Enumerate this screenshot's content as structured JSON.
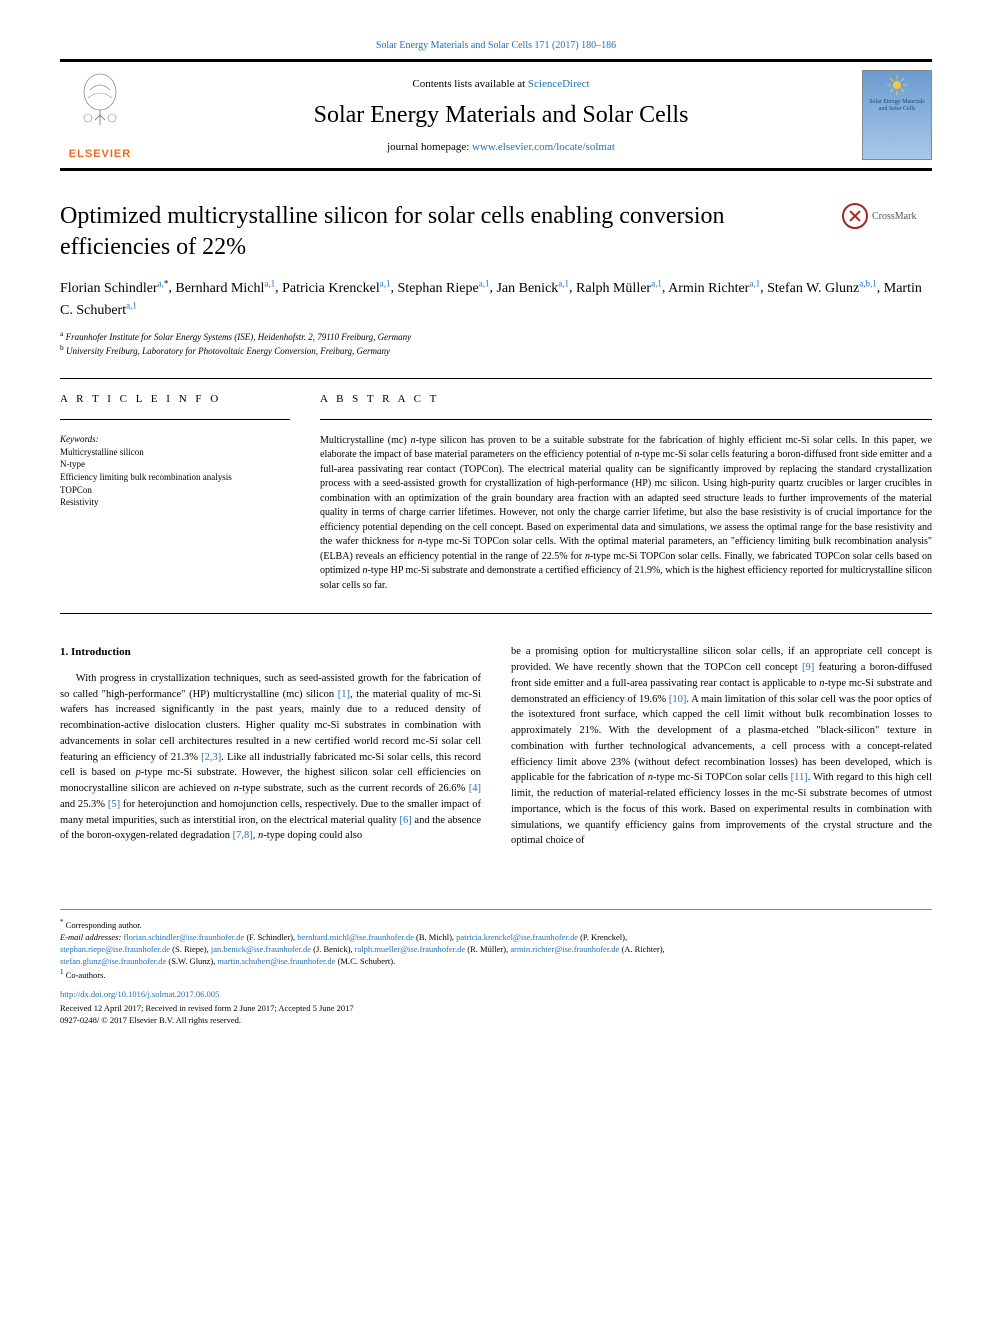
{
  "topLink": "Solar Energy Materials and Solar Cells 171 (2017) 180–186",
  "header": {
    "contentsPrefix": "Contents lists available at ",
    "contentsLink": "ScienceDirect",
    "journalTitle": "Solar Energy Materials and Solar Cells",
    "homepagePrefix": "journal homepage: ",
    "homepageLink": "www.elsevier.com/locate/solmat",
    "elsevierLabel": "ELSEVIER",
    "coverText": "Solar Energy Materials and Solar Cells"
  },
  "crossmarkLabel": "CrossMark",
  "title": "Optimized multicrystalline silicon for solar cells enabling conversion efficiencies of 22%",
  "authors": [
    {
      "name": "Florian Schindler",
      "aff": "a,",
      "mark": "*"
    },
    {
      "name": "Bernhard Michl",
      "aff": "a,",
      "mark": "1"
    },
    {
      "name": "Patricia Krenckel",
      "aff": "a,",
      "mark": "1"
    },
    {
      "name": "Stephan Riepe",
      "aff": "a,",
      "mark": "1"
    },
    {
      "name": "Jan Benick",
      "aff": "a,",
      "mark": "1"
    },
    {
      "name": "Ralph Müller",
      "aff": "a,",
      "mark": "1"
    },
    {
      "name": "Armin Richter",
      "aff": "a,",
      "mark": "1"
    },
    {
      "name": "Stefan W. Glunz",
      "aff": "a,b,",
      "mark": "1"
    },
    {
      "name": "Martin C. Schubert",
      "aff": "a,",
      "mark": "1"
    }
  ],
  "affiliations": [
    {
      "sup": "a",
      "text": " Fraunhofer Institute for Solar Energy Systems (ISE), Heidenhofstr. 2, 79110 Freiburg, Germany"
    },
    {
      "sup": "b",
      "text": " University Freiburg, Laboratory for Photovoltaic Energy Conversion, Freiburg, Germany"
    }
  ],
  "articleInfoLabel": "A R T I C L E  I N F O",
  "keywordsLabel": "Keywords:",
  "keywords": [
    "Multicrystalline silicon",
    "N-type",
    "Efficiency limiting bulk recombination analysis",
    "TOPCon",
    "Resistivity"
  ],
  "abstractLabel": "A B S T R A C T",
  "abstract": "Multicrystalline (mc) n-type silicon has proven to be a suitable substrate for the fabrication of highly efficient mc-Si solar cells. In this paper, we elaborate the impact of base material parameters on the efficiency potential of n-type mc-Si solar cells featuring a boron-diffused front side emitter and a full-area passivating rear contact (TOPCon). The electrical material quality can be significantly improved by replacing the standard crystallization process with a seed-assisted growth for crystallization of high-performance (HP) mc silicon. Using high-purity quartz crucibles or larger crucibles in combination with an optimization of the grain boundary area fraction with an adapted seed structure leads to further improvements of the material quality in terms of charge carrier lifetimes. However, not only the charge carrier lifetime, but also the base resistivity is of crucial importance for the efficiency potential depending on the cell concept. Based on experimental data and simulations, we assess the optimal range for the base resistivity and the wafer thickness for n-type mc-Si TOPCon solar cells. With the optimal material parameters, an \"efficiency limiting bulk recombination analysis\" (ELBA) reveals an efficiency potential in the range of 22.5% for n-type mc-Si TOPCon solar cells. Finally, we fabricated TOPCon solar cells based on optimized n-type HP mc-Si substrate and demonstrate a certified efficiency of 21.9%, which is the highest efficiency reported for multicrystalline silicon solar cells so far.",
  "introHeading": "1. Introduction",
  "col1": {
    "p1a": "With progress in crystallization techniques, such as seed-assisted growth for the fabrication of so called \"high-performance\" (HP) multicrystalline (mc) silicon ",
    "ref1": "[1]",
    "p1b": ", the material quality of mc-Si wafers has increased significantly in the past years, mainly due to a reduced density of recombination-active dislocation clusters. Higher quality mc-Si substrates in combination with advancements in solar cell architectures resulted in a new certified world record mc-Si solar cell featuring an efficiency of 21.3% ",
    "ref23": "[2,3]",
    "p1c": ". Like all industrially fabricated mc-Si solar cells, this record cell is based on p-type mc-Si substrate. However, the highest silicon solar cell efficiencies on monocrystalline silicon are achieved on n-type substrate, such as the current records of 26.6% ",
    "ref4": "[4]",
    "p1d": " and 25.3% ",
    "ref5": "[5]",
    "p1e": " for heterojunction and homojunction cells, respectively. Due to the smaller impact of many metal impurities, such as interstitial iron, on the electrical material quality ",
    "ref6": "[6]",
    "p1f": " and the absence of the boron-oxygen-related degradation ",
    "ref78": "[7,8]",
    "p1g": ", n-type doping could also"
  },
  "col2": {
    "p1a": "be a promising option for multicrystalline silicon solar cells, if an appropriate cell concept is provided. We have recently shown that the TOPCon cell concept ",
    "ref9": "[9]",
    "p1b": " featuring a boron-diffused front side emitter and a full-area passivating rear contact is applicable to n-type mc-Si substrate and demonstrated an efficiency of 19.6% ",
    "ref10": "[10]",
    "p1c": ". A main limitation of this solar cell was the poor optics of the isotextured front surface, which capped the cell limit without bulk recombination losses to approximately 21%. With the development of a plasma-etched \"black-silicon\" texture in combination with further technological advancements, a cell process with a concept-related efficiency limit above 23% (without defect recombination losses) has been developed, which is applicable for the fabrication of n-type mc-Si TOPCon solar cells ",
    "ref11": "[11]",
    "p1d": ". With regard to this high cell limit, the reduction of material-related efficiency losses in the mc-Si substrate becomes of utmost importance, which is the focus of this work. Based on experimental results in combination with simulations, we quantify efficiency gains from improvements of the crystal structure and the optimal choice of"
  },
  "footer": {
    "corrMark": "*",
    "corrText": " Corresponding author.",
    "emailLabel": "E-mail addresses: ",
    "emails": [
      {
        "addr": "florian.schindler@ise.fraunhofer.de",
        "name": " (F. Schindler), "
      },
      {
        "addr": "bernhard.michl@ise.fraunhofer.de",
        "name": " (B. Michl), "
      },
      {
        "addr": "patricia.krenckel@ise.fraunhofer.de",
        "name": " (P. Krenckel),"
      }
    ],
    "emails2": [
      {
        "addr": "stephan.riepe@ise.fraunhofer.de",
        "name": " (S. Riepe), "
      },
      {
        "addr": "jan.benick@ise.fraunhofer.de",
        "name": " (J. Benick), "
      },
      {
        "addr": "ralph.mueller@ise.fraunhofer.de",
        "name": " (R. Müller), "
      },
      {
        "addr": "armin.richter@ise.fraunhofer.de",
        "name": " (A. Richter),"
      }
    ],
    "emails3": [
      {
        "addr": "stefan.glunz@ise.fraunhofer.de",
        "name": " (S.W. Glunz), "
      },
      {
        "addr": "martin.schubert@ise.fraunhofer.de",
        "name": " (M.C. Schubert)."
      }
    ],
    "coauthorsMark": "1",
    "coauthorsText": " Co-authors.",
    "doi": "http://dx.doi.org/10.1016/j.solmat.2017.06.005",
    "received": "Received 12 April 2017; Received in revised form 2 June 2017; Accepted 5 June 2017",
    "copyright": "0927-0248/ © 2017 Elsevier B.V. All rights reserved."
  }
}
